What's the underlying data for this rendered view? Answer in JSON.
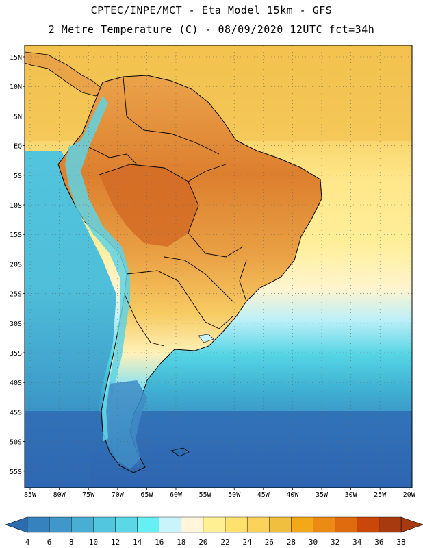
{
  "header": {
    "line1": "CPTEC/INPE/MCT -  Eta Model 15km - GFS",
    "line2": "2 Metre Temperature (C) - 08/09/2020 12UTC fct=34h"
  },
  "axes": {
    "lat_labels": [
      "15N",
      "10N",
      "5N",
      "EQ",
      "5S",
      "10S",
      "15S",
      "20S",
      "25S",
      "30S",
      "35S",
      "40S",
      "45S",
      "50S",
      "55S"
    ],
    "lon_labels": [
      "85W",
      "80W",
      "75W",
      "70W",
      "65W",
      "60W",
      "55W",
      "50W",
      "45W",
      "40W",
      "35W",
      "30W",
      "25W",
      "20W"
    ]
  },
  "colorbar": {
    "labels": [
      "4",
      "6",
      "8",
      "10",
      "12",
      "14",
      "16",
      "18",
      "20",
      "22",
      "24",
      "26",
      "28",
      "30",
      "32",
      "34",
      "36",
      "38"
    ],
    "colors": [
      "#2b6cb0",
      "#3682be",
      "#3f98c9",
      "#49aed4",
      "#52c6de",
      "#5ad8e6",
      "#66f0f4",
      "#c9f4fb",
      "#fff6dc",
      "#fff093",
      "#ffe26e",
      "#fbd35a",
      "#f1bf3f",
      "#f3a81a",
      "#eb8b14",
      "#e06a0e",
      "#c94708",
      "#a83a10"
    ]
  },
  "legend": {
    "land_high": "#d97a2a",
    "ocean_warm": "#f3c451",
    "ocean_cold": "#2f6bb0",
    "border_color": "#000000"
  }
}
